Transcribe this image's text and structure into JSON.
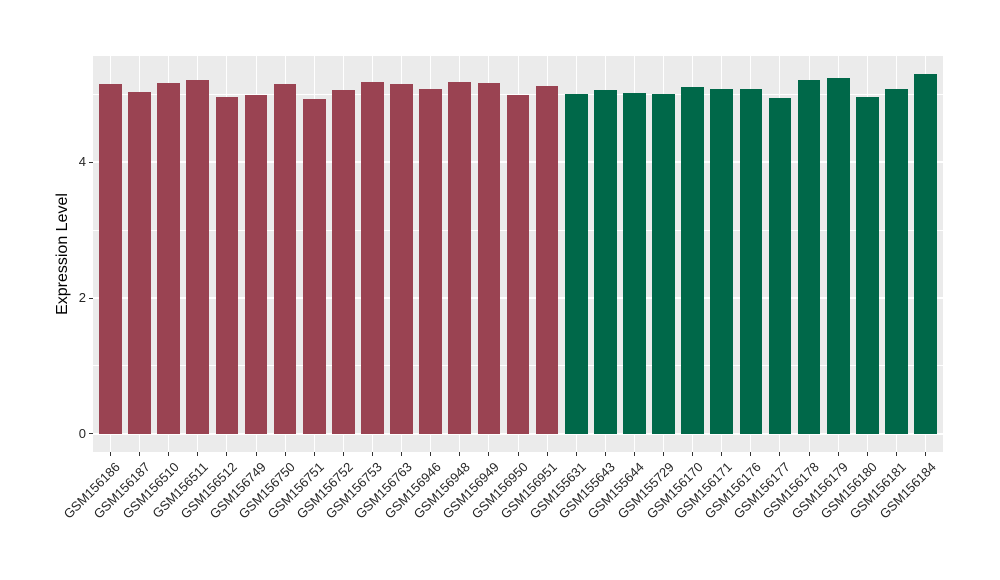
{
  "chart_data": {
    "type": "bar",
    "title": "",
    "xlabel": "",
    "ylabel": "Expression Level",
    "ylim": [
      -0.27,
      5.57
    ],
    "yticks": [
      0,
      2,
      4
    ],
    "yticks_minor": [
      1,
      3,
      5
    ],
    "grid": "white major and minor horizontal lines plus vertical line at each bar center on grey panel",
    "legend": "none",
    "panel_bg": "#EBEBEB",
    "grid_color": "#FFFFFF",
    "tick_color": "#333333",
    "axis_text_color": "#262626",
    "group_colors": {
      "1": "#9A4352",
      "2": "#006849"
    },
    "categories": [
      "GSM156186",
      "GSM156187",
      "GSM156510",
      "GSM156511",
      "GSM156512",
      "GSM156749",
      "GSM156750",
      "GSM156751",
      "GSM156752",
      "GSM156753",
      "GSM156763",
      "GSM156946",
      "GSM156948",
      "GSM156949",
      "GSM156950",
      "GSM156951",
      "GSM155631",
      "GSM155643",
      "GSM155644",
      "GSM155729",
      "GSM156170",
      "GSM156171",
      "GSM156176",
      "GSM156177",
      "GSM156178",
      "GSM156179",
      "GSM156180",
      "GSM156181",
      "GSM156184"
    ],
    "values": [
      5.16,
      5.04,
      5.17,
      5.21,
      4.96,
      4.99,
      5.15,
      4.93,
      5.07,
      5.19,
      5.16,
      5.08,
      5.19,
      5.17,
      5.0,
      5.13,
      5.01,
      5.07,
      5.02,
      5.01,
      5.12,
      5.09,
      5.08,
      4.95,
      5.21,
      5.25,
      4.97,
      5.09,
      5.3
    ],
    "bar_groups": [
      "1",
      "1",
      "1",
      "1",
      "1",
      "1",
      "1",
      "1",
      "1",
      "1",
      "1",
      "1",
      "1",
      "1",
      "1",
      "1",
      "2",
      "2",
      "2",
      "2",
      "2",
      "2",
      "2",
      "2",
      "2",
      "2",
      "2",
      "2",
      "2"
    ]
  }
}
